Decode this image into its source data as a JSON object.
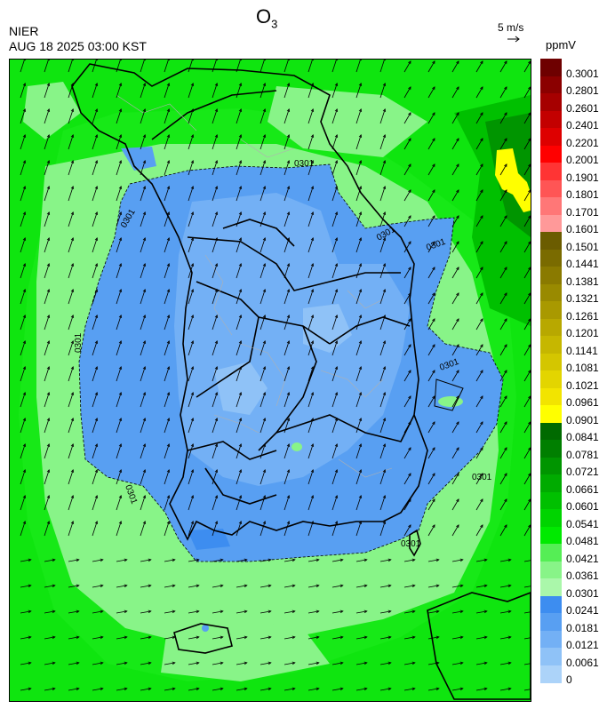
{
  "header": {
    "title": "O",
    "title_sub": "3",
    "organization": "NIER",
    "timestamp": "AUG 18 2025 03:00 KST",
    "wind_reference": "5 m/s",
    "units": "ppmV"
  },
  "map": {
    "contour_labels": [
      "0301",
      "0301",
      "0301",
      "0301",
      "0301",
      "0301",
      "0301",
      "0301",
      "0301"
    ],
    "wind_direction": "southwest to northeast, weaker and westerly over the southern sea"
  },
  "legend": {
    "levels": [
      {
        "label": "0.3001",
        "color": "#6e0000"
      },
      {
        "label": "0.2801",
        "color": "#8b0000"
      },
      {
        "label": "0.2601",
        "color": "#a60000"
      },
      {
        "label": "0.2401",
        "color": "#c30000"
      },
      {
        "label": "0.2201",
        "color": "#de0000"
      },
      {
        "label": "0.2001",
        "color": "#ff0000"
      },
      {
        "label": "0.1901",
        "color": "#ff3434"
      },
      {
        "label": "0.1801",
        "color": "#ff5555"
      },
      {
        "label": "0.1701",
        "color": "#ff7777"
      },
      {
        "label": "0.1601",
        "color": "#ff9999"
      },
      {
        "label": "0.1501",
        "color": "#6b5c00"
      },
      {
        "label": "0.1441",
        "color": "#7a6b00"
      },
      {
        "label": "0.1381",
        "color": "#8a7a00"
      },
      {
        "label": "0.1321",
        "color": "#998a00"
      },
      {
        "label": "0.1261",
        "color": "#a99900"
      },
      {
        "label": "0.1201",
        "color": "#b8a800"
      },
      {
        "label": "0.1141",
        "color": "#c6b700"
      },
      {
        "label": "0.1081",
        "color": "#d4c600"
      },
      {
        "label": "0.1021",
        "color": "#e3d500"
      },
      {
        "label": "0.0961",
        "color": "#f2e400"
      },
      {
        "label": "0.0901",
        "color": "#ffff00"
      },
      {
        "label": "0.0841",
        "color": "#006a00"
      },
      {
        "label": "0.0781",
        "color": "#007f00"
      },
      {
        "label": "0.0721",
        "color": "#009500"
      },
      {
        "label": "0.0661",
        "color": "#00ab00"
      },
      {
        "label": "0.0601",
        "color": "#00c000"
      },
      {
        "label": "0.0541",
        "color": "#00d400"
      },
      {
        "label": "0.0481",
        "color": "#00ea00"
      },
      {
        "label": "0.0421",
        "color": "#55ee55"
      },
      {
        "label": "0.0361",
        "color": "#88f488"
      },
      {
        "label": "0.0301",
        "color": "#aaf7aa"
      },
      {
        "label": "0.0241",
        "color": "#3d8df0"
      },
      {
        "label": "0.0181",
        "color": "#589ff2"
      },
      {
        "label": "0.0121",
        "color": "#73b0f5"
      },
      {
        "label": "0.0061",
        "color": "#8fc2f7"
      },
      {
        "label": "0",
        "color": "#acd3f9"
      }
    ]
  }
}
